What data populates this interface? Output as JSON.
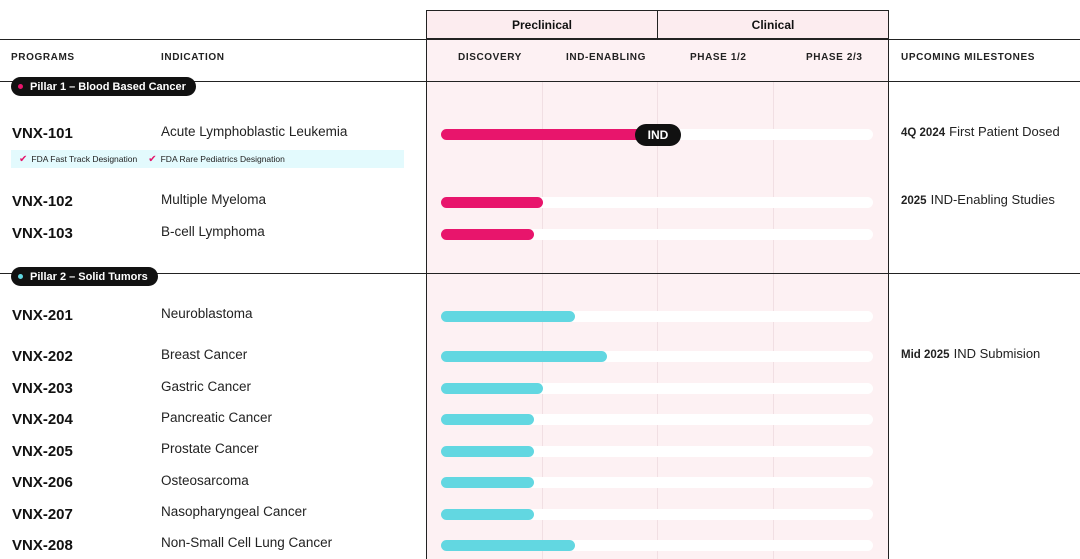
{
  "stages": {
    "preclinical": "Preclinical",
    "clinical": "Clinical"
  },
  "columns": {
    "programs": "PROGRAMS",
    "indication": "INDICATION",
    "discovery": "DISCOVERY",
    "ind_enabling": "IND-ENABLING",
    "phase12": "PHASE 1/2",
    "phase23": "PHASE 2/3",
    "milestones": "UPCOMING MILESTONES"
  },
  "colors": {
    "blood": "#e8156c",
    "solid": "#62d7e1"
  },
  "pillar1": {
    "label": "Pillar 1 – Blood Based Cancer",
    "fda": [
      "FDA Fast Track Designation",
      "FDA Rare Pediatrics Designation"
    ],
    "rows": [
      {
        "program": "VNX-101",
        "indication": "Acute Lymphoblastic Leukemia",
        "progress": 0.5,
        "badge": "IND",
        "milestone_bold": "4Q 2024",
        "milestone": "First Patient Dosed"
      },
      {
        "program": "VNX-102",
        "indication": "Multiple Myeloma",
        "progress": 0.235,
        "milestone_bold": "2025",
        "milestone": "IND-Enabling Studies"
      },
      {
        "program": "VNX-103",
        "indication": "B-cell Lymphoma",
        "progress": 0.215
      }
    ]
  },
  "pillar2": {
    "label": "Pillar 2 – Solid Tumors",
    "rows": [
      {
        "program": "VNX-201",
        "indication": "Neuroblastoma",
        "progress": 0.31
      },
      {
        "program": "VNX-202",
        "indication": "Breast Cancer",
        "progress": 0.385,
        "milestone_bold": "Mid 2025",
        "milestone": "IND Submision"
      },
      {
        "program": "VNX-203",
        "indication": "Gastric Cancer",
        "progress": 0.235
      },
      {
        "program": "VNX-204",
        "indication": "Pancreatic Cancer",
        "progress": 0.215
      },
      {
        "program": "VNX-205",
        "indication": "Prostate Cancer",
        "progress": 0.215
      },
      {
        "program": "VNX-206",
        "indication": "Osteosarcoma",
        "progress": 0.215
      },
      {
        "program": "VNX-207",
        "indication": "Nasopharyngeal Cancer",
        "progress": 0.215
      },
      {
        "program": "VNX-208",
        "indication": "Non-Small Cell Lung Cancer",
        "progress": 0.31
      }
    ]
  }
}
